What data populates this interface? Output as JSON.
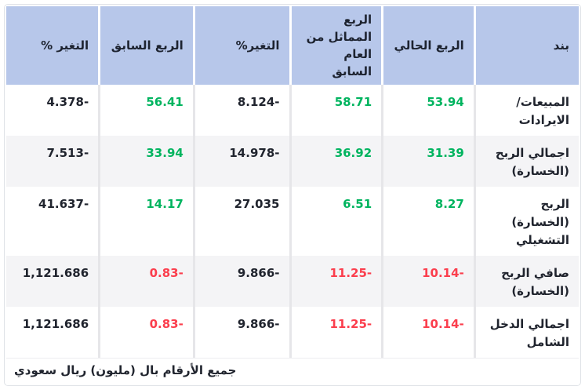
{
  "table": {
    "columns": [
      {
        "label": "بند"
      },
      {
        "label": "الربع الحالي"
      },
      {
        "label": "الربع المماثل من العام السابق"
      },
      {
        "label": "التغير%"
      },
      {
        "label": "الربع السابق"
      },
      {
        "label": "التغير %"
      }
    ],
    "rows": [
      {
        "label": "المبيعات/ الايرادات",
        "values": [
          {
            "text": "53.94",
            "tone": "pos"
          },
          {
            "text": "58.71",
            "tone": "pos"
          },
          {
            "text": "-8.124",
            "tone": "plain"
          },
          {
            "text": "56.41",
            "tone": "pos"
          },
          {
            "text": "-4.378",
            "tone": "plain"
          }
        ]
      },
      {
        "label": "اجمالي الربح (الخسارة)",
        "values": [
          {
            "text": "31.39",
            "tone": "pos"
          },
          {
            "text": "36.92",
            "tone": "pos"
          },
          {
            "text": "-14.978",
            "tone": "plain"
          },
          {
            "text": "33.94",
            "tone": "pos"
          },
          {
            "text": "-7.513",
            "tone": "plain"
          }
        ]
      },
      {
        "label": "الربح (الخسارة) التشغيلي",
        "values": [
          {
            "text": "8.27",
            "tone": "pos"
          },
          {
            "text": "6.51",
            "tone": "pos"
          },
          {
            "text": "27.035",
            "tone": "plain"
          },
          {
            "text": "14.17",
            "tone": "pos"
          },
          {
            "text": "-41.637",
            "tone": "plain"
          }
        ]
      },
      {
        "label": "صافي الربح (الخسارة)",
        "values": [
          {
            "text": "-10.14",
            "tone": "neg"
          },
          {
            "text": "-11.25",
            "tone": "neg"
          },
          {
            "text": "-9.866",
            "tone": "plain"
          },
          {
            "text": "-0.83",
            "tone": "neg"
          },
          {
            "text": "1,121.686",
            "tone": "plain"
          }
        ]
      },
      {
        "label": "اجمالي الدخل الشامل",
        "values": [
          {
            "text": "-10.14",
            "tone": "neg"
          },
          {
            "text": "-11.25",
            "tone": "neg"
          },
          {
            "text": "-9.866",
            "tone": "plain"
          },
          {
            "text": "-0.83",
            "tone": "neg"
          },
          {
            "text": "1,121.686",
            "tone": "plain"
          }
        ]
      }
    ],
    "footnote": "جميع الأرقام بال (مليون) ريال سعودي"
  },
  "colors": {
    "header_background": "#b7c7ea",
    "row_alternate_background": "#f4f4f6",
    "positive_value": "#00b45f",
    "negative_value": "#fb3e4d",
    "neutral_text": "#20242e",
    "cell_separator": "#e6e6e9",
    "outer_border": "#dfe2e7"
  }
}
